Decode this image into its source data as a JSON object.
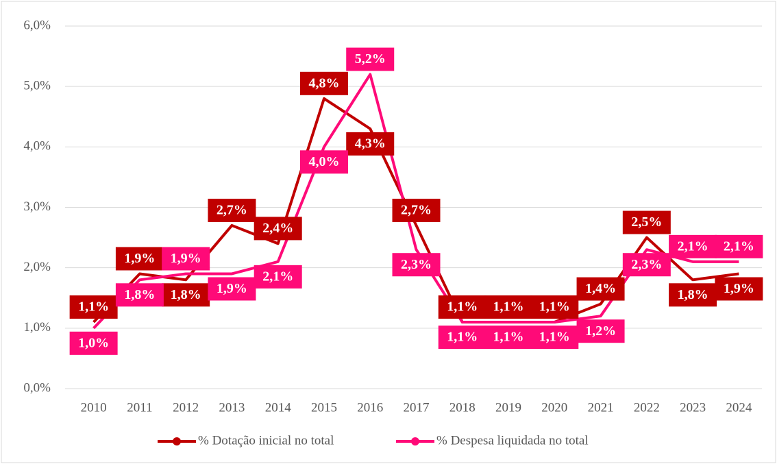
{
  "chart_data": {
    "type": "line",
    "categories": [
      "2010",
      "2011",
      "2012",
      "2013",
      "2014",
      "2015",
      "2016",
      "2017",
      "2018",
      "2019",
      "2020",
      "2021",
      "2022",
      "2023",
      "2024"
    ],
    "series": [
      {
        "name": "% Dotação inicial no total",
        "color": "#C00000",
        "values": [
          1.1,
          1.9,
          1.8,
          2.7,
          2.4,
          4.8,
          4.3,
          2.7,
          1.1,
          1.1,
          1.1,
          1.4,
          2.5,
          1.8,
          1.9
        ],
        "value_labels": [
          "1,1%",
          "1,9%",
          "1,8%",
          "2,7%",
          "2,4%",
          "4,8%",
          "4,3%",
          "2,7%",
          "1,1%",
          "1,1%",
          "1,1%",
          "1,4%",
          "2,5%",
          "1,8%",
          "1,9%"
        ]
      },
      {
        "name": "% Despesa liquidada no total",
        "color": "#FF0A78",
        "values": [
          1.0,
          1.8,
          1.9,
          1.9,
          2.1,
          4.0,
          5.2,
          2.3,
          1.1,
          1.1,
          1.1,
          1.2,
          2.3,
          2.1,
          2.1
        ],
        "value_labels": [
          "1,0%",
          "1,8%",
          "1,9%",
          "1,9%",
          "2,1%",
          "4,0%",
          "5,2%",
          "2,3%",
          "1,1%",
          "1,1%",
          "1,1%",
          "1,2%",
          "2,3%",
          "2,1%",
          "2,1%"
        ]
      }
    ],
    "ylim": [
      0,
      6
    ],
    "yticks": [
      {
        "value": 0,
        "label": "0,0%"
      },
      {
        "value": 1,
        "label": "1,0%"
      },
      {
        "value": 2,
        "label": "2,0%"
      },
      {
        "value": 3,
        "label": "3,0%"
      },
      {
        "value": 4,
        "label": "4,0%"
      },
      {
        "value": 5,
        "label": "5,0%"
      },
      {
        "value": 6,
        "label": "6,0%"
      }
    ],
    "grid": true,
    "legend": "bottom"
  }
}
